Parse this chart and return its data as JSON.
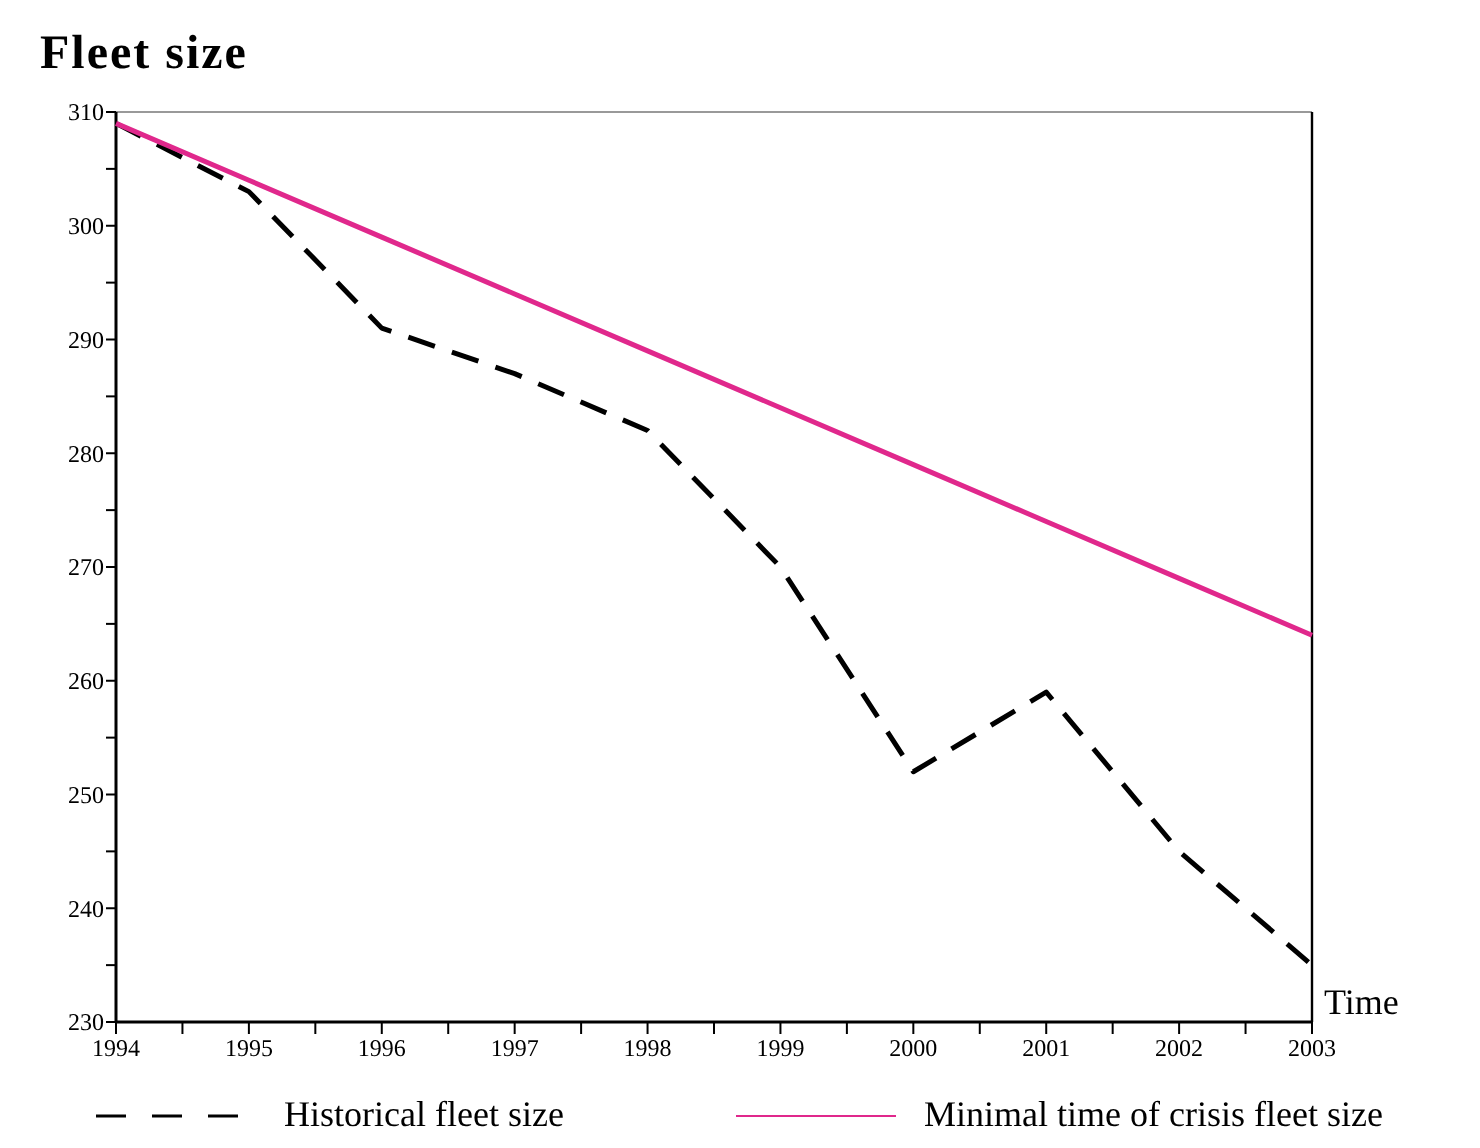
{
  "chart_data": {
    "type": "line",
    "title": "Fleet size",
    "xlabel": "Time",
    "x": [
      1994,
      1995,
      1996,
      1997,
      1998,
      1999,
      2000,
      2001,
      2002,
      2003
    ],
    "xlim": [
      1994,
      2003
    ],
    "xticks": [
      1994,
      {
        "value": 1994.5,
        "label": null
      },
      1995,
      {
        "value": 1995.5,
        "label": null
      },
      1996,
      {
        "value": 1996.5,
        "label": null
      },
      1997,
      {
        "value": 1997.5,
        "label": null
      },
      1998,
      {
        "value": 1998.5,
        "label": null
      },
      1999,
      {
        "value": 1999.5,
        "label": null
      },
      2000,
      {
        "value": 2000.5,
        "label": null
      },
      2001,
      {
        "value": 2001.5,
        "label": null
      },
      2002,
      {
        "value": 2002.5,
        "label": null
      },
      2003
    ],
    "ylim": [
      230,
      310
    ],
    "yticks": [
      230,
      {
        "value": 235,
        "label": null
      },
      240,
      {
        "value": 245,
        "label": null
      },
      250,
      {
        "value": 255,
        "label": null
      },
      260,
      {
        "value": 265,
        "label": null
      },
      270,
      {
        "value": 275,
        "label": null
      },
      280,
      {
        "value": 285,
        "label": null
      },
      290,
      {
        "value": 295,
        "label": null
      },
      300,
      {
        "value": 305,
        "label": null
      },
      310
    ],
    "grid": false,
    "legend": "bottom",
    "marker": "none",
    "series": [
      {
        "name": "Historical fleet size",
        "color": "#000000",
        "line_style": "dashed",
        "values": [
          309,
          303,
          291,
          287,
          282,
          270,
          252,
          259,
          245,
          235
        ]
      },
      {
        "name": "Minimal time of crisis fleet size",
        "color": "#e0288c",
        "line_style": "solid",
        "values": [
          309,
          304,
          299,
          294,
          289,
          284,
          279,
          274,
          269,
          264
        ]
      }
    ]
  }
}
